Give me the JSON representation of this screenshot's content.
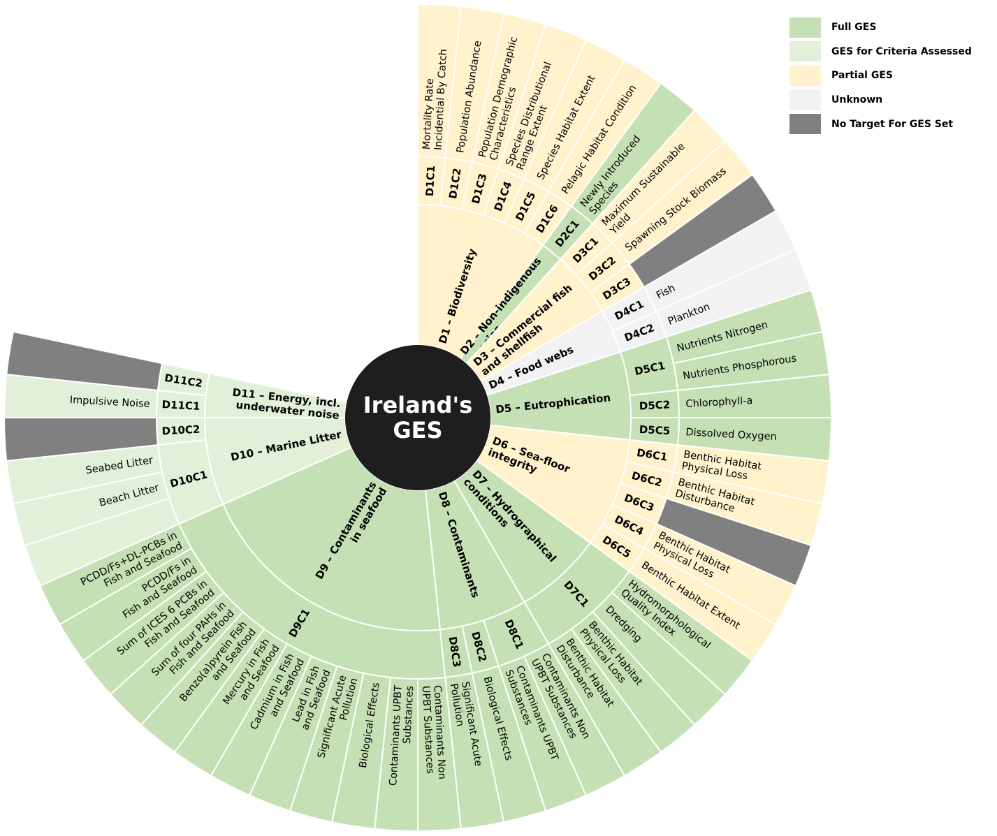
{
  "center_label": "Ireland's\nGES",
  "statuses": {
    "full": {
      "label": "Full GES",
      "color": "#c5e0b4"
    },
    "criteria": {
      "label": "GES for Criteria Assessed",
      "color": "#e2f0d9"
    },
    "partial": {
      "label": "Partial GES",
      "color": "#fff2cc"
    },
    "unknown": {
      "label": "Unknown",
      "color": "#f2f2f2"
    },
    "notarget": {
      "label": "No Target For GES Set",
      "color": "#808080"
    }
  },
  "legend": [
    "full",
    "criteria",
    "partial",
    "unknown",
    "notarget"
  ],
  "chart_data": {
    "type": "sunburst",
    "title": "Ireland's GES",
    "descriptors": [
      {
        "name": "D1 – Biodiversity",
        "status": "partial",
        "criteria": [
          {
            "code": "D1C1",
            "indicators": [
              {
                "name": "Mortality Rate\nIncidential By Catch",
                "status": "partial"
              }
            ]
          },
          {
            "code": "D1C2",
            "indicators": [
              {
                "name": "Population Abundance",
                "status": "partial"
              }
            ]
          },
          {
            "code": "D1C3",
            "indicators": [
              {
                "name": "Population Demographic\nCharacteristics",
                "status": "partial"
              }
            ]
          },
          {
            "code": "D1C4",
            "indicators": [
              {
                "name": "Species Distributional\nRange Extent",
                "status": "partial"
              }
            ]
          },
          {
            "code": "D1C5",
            "indicators": [
              {
                "name": "Species Habitat Extent",
                "status": "partial"
              }
            ]
          },
          {
            "code": "D1C6",
            "indicators": [
              {
                "name": "Pelagic Habitat Condition",
                "status": "partial"
              }
            ]
          }
        ]
      },
      {
        "name": "D2 – Non-indigenous\nspecies",
        "status": "full",
        "criteria": [
          {
            "code": "D2C1",
            "indicators": [
              {
                "name": "Newly Introduced\nSpecies",
                "status": "full"
              }
            ]
          }
        ]
      },
      {
        "name": "D3 – Commercial fish\nand shellfish",
        "status": "partial",
        "criteria": [
          {
            "code": "D3C1",
            "indicators": [
              {
                "name": "Maximum Sustainable\nYield",
                "status": "partial"
              }
            ]
          },
          {
            "code": "D3C2",
            "indicators": [
              {
                "name": "Spawning Stock Biomass",
                "status": "partial"
              }
            ]
          },
          {
            "code": "D3C3",
            "indicators": [
              {
                "name": "",
                "status": "notarget"
              }
            ]
          }
        ]
      },
      {
        "name": "D4 – Food webs",
        "status": "unknown",
        "criteria": [
          {
            "code": "D4C1",
            "indicators": [
              {
                "name": "Fish",
                "status": "unknown"
              }
            ]
          },
          {
            "code": "D4C2",
            "indicators": [
              {
                "name": "Plankton",
                "status": "unknown"
              }
            ]
          }
        ]
      },
      {
        "name": "D5 – Eutrophication",
        "status": "full",
        "criteria": [
          {
            "code": "D5C1",
            "indicators": [
              {
                "name": "Nutrients Nitrogen",
                "status": "full"
              },
              {
                "name": "Nutrients Phosphorous",
                "status": "full"
              }
            ]
          },
          {
            "code": "D5C2",
            "indicators": [
              {
                "name": "Chlorophyll-a",
                "status": "full"
              }
            ]
          },
          {
            "code": "D5C5",
            "indicators": [
              {
                "name": "Dissolved Oxygen",
                "status": "full"
              }
            ]
          }
        ]
      },
      {
        "name": "D6 – Sea-floor\nintegrity",
        "status": "partial",
        "criteria": [
          {
            "code": "D6C1",
            "indicators": [
              {
                "name": "Benthic Habitat\nPhysical Loss",
                "status": "partial"
              }
            ]
          },
          {
            "code": "D6C2",
            "indicators": [
              {
                "name": "Benthic Habitat\nDisturbance",
                "status": "partial"
              }
            ]
          },
          {
            "code": "D6C3",
            "indicators": [
              {
                "name": "",
                "status": "notarget"
              }
            ]
          },
          {
            "code": "D6C4",
            "indicators": [
              {
                "name": "Benthic Habitat\nPhysical Loss",
                "status": "partial"
              }
            ]
          },
          {
            "code": "D6C5",
            "indicators": [
              {
                "name": "Benthic Habitat Extent",
                "status": "partial"
              }
            ]
          }
        ]
      },
      {
        "name": "D7 – Hydrographical\nconditions",
        "status": "full",
        "criteria": [
          {
            "code": "D7C1",
            "indicators": [
              {
                "name": "Hydromorphological\nQuality Index",
                "status": "full"
              },
              {
                "name": "Dredging",
                "status": "full"
              },
              {
                "name": "Benthic Habitat\nPhysical Loss",
                "status": "full"
              },
              {
                "name": "Benthic Habitat\nDisturbance",
                "status": "full"
              }
            ]
          }
        ]
      },
      {
        "name": "D8 – Contaminants",
        "status": "full",
        "criteria": [
          {
            "code": "D8C1",
            "indicators": [
              {
                "name": "Contaminants Non\nUPBT Substances",
                "status": "full"
              },
              {
                "name": "Contaminants UPBT\nSubstances",
                "status": "full"
              }
            ]
          },
          {
            "code": "D8C2",
            "indicators": [
              {
                "name": "Biological Effects",
                "status": "full"
              }
            ]
          },
          {
            "code": "D8C3",
            "indicators": [
              {
                "name": "Significant Acute\nPollution",
                "status": "full"
              }
            ]
          }
        ]
      },
      {
        "name": "D9 – Contaminants\nin seafood",
        "status": "full",
        "criteria": [
          {
            "code": "D9C1",
            "indicators": [
              {
                "name": "Contaminants Non\nUPBT Substances",
                "status": "full"
              },
              {
                "name": "Contaminants UPBT\nSubstances",
                "status": "full"
              },
              {
                "name": "Biological Effects",
                "status": "full"
              },
              {
                "name": "Significant Acute\nPollution",
                "status": "full"
              },
              {
                "name": "Lead in Fish\nand Seafood",
                "status": "full"
              },
              {
                "name": "Cadmium in Fish\nand Seafood",
                "status": "full"
              },
              {
                "name": "Mercury in Fish\nand Seafood",
                "status": "full"
              },
              {
                "name": "Benzo(a)pyrein Fish\nand Seafood",
                "status": "full"
              },
              {
                "name": "Sum of four PAHs in\nFish and Seafood",
                "status": "full"
              },
              {
                "name": "Sum of ICES 6 PCBs in\nFish and Seafood",
                "status": "full"
              },
              {
                "name": "PCDD/Fs in\nFish and Seafood",
                "status": "full"
              },
              {
                "name": "PCDD/Fs+DL-PCBs in\nFish and Seafood",
                "status": "full"
              }
            ]
          }
        ]
      },
      {
        "name": "D10 – Marine Litter",
        "status": "criteria",
        "criteria": [
          {
            "code": "D10C1",
            "indicators": [
              {
                "name": "",
                "status": "criteria"
              },
              {
                "name": "Beach Litter",
                "status": "criteria"
              },
              {
                "name": "Seabed Litter",
                "status": "criteria"
              }
            ]
          },
          {
            "code": "D10C2",
            "indicators": [
              {
                "name": "",
                "status": "notarget"
              }
            ]
          }
        ]
      },
      {
        "name": "D11 – Energy, incl.\nunderwater noise",
        "status": "criteria",
        "criteria": [
          {
            "code": "D11C1",
            "indicators": [
              {
                "name": "Impulsive Noise",
                "status": "criteria"
              }
            ]
          },
          {
            "code": "D11C2",
            "indicators": [
              {
                "name": "",
                "status": "notarget"
              }
            ]
          }
        ]
      }
    ]
  }
}
